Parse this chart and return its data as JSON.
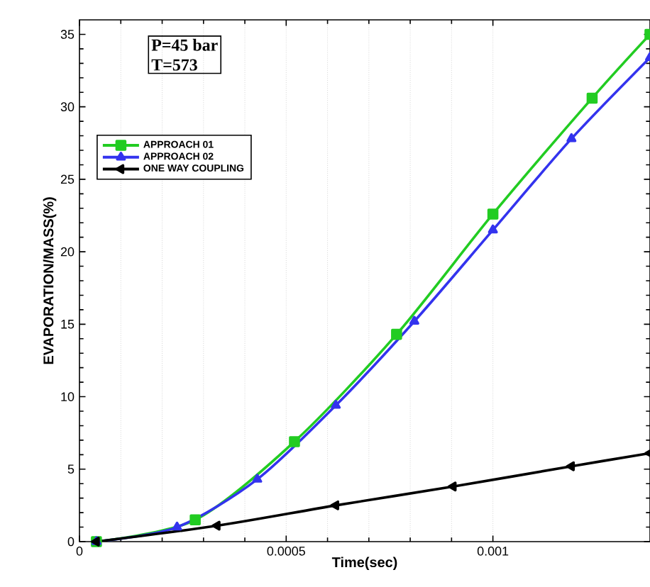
{
  "chart_data": {
    "type": "line",
    "xlabel": "Time(sec)",
    "ylabel": "EVAPORATION/MASS(%)",
    "annotations": [
      "P=45 bar",
      "T=573"
    ],
    "xlim": [
      0,
      0.00138
    ],
    "ylim": [
      0,
      36
    ],
    "xticks": [
      0,
      0.0005,
      0.001
    ],
    "yticks": [
      0,
      5,
      10,
      15,
      20,
      25,
      30,
      35
    ],
    "grid": "x",
    "legend": "top left",
    "series": [
      {
        "name": "APPROACH 01",
        "color": "#22cc22",
        "marker": "square",
        "x": [
          4.1e-05,
          0.00028,
          0.00052,
          0.000767,
          0.001,
          0.00124,
          0.00138
        ],
        "values": [
          0,
          1.5,
          6.9,
          14.3,
          22.6,
          30.6,
          35
        ]
      },
      {
        "name": "APPROACH 02",
        "color": "#3333ee",
        "marker": "triangle",
        "x": [
          4.1e-05,
          0.000236,
          0.00043,
          0.00062,
          0.00081,
          0.001,
          0.00119,
          0.00138
        ],
        "values": [
          0,
          1.0,
          4.3,
          9.4,
          15.2,
          21.5,
          27.8,
          33.4
        ]
      },
      {
        "name": "ONE WAY COUPLING",
        "color": "#000000",
        "marker": "triangle-left",
        "x": [
          4.1e-05,
          0.000333,
          0.00062,
          0.000904,
          0.00119,
          0.00138
        ],
        "values": [
          0,
          1.1,
          2.5,
          3.8,
          5.2,
          6.1
        ]
      }
    ]
  }
}
